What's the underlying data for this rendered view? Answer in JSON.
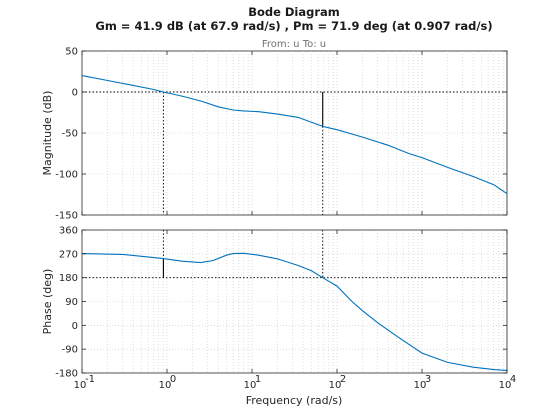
{
  "figure": {
    "title": "Bode Diagram",
    "subtitle": "Gm = 41.9 dB (at 67.9 rad/s) ,  Pm = 71.9 deg (at 0.907 rad/s)",
    "io_label": "From: u  To: u"
  },
  "chart_data": [
    {
      "type": "line",
      "panel": "magnitude",
      "xlabel": "Frequency  (rad/s)",
      "ylabel": "Magnitude (dB)",
      "xscale": "log",
      "xlim": [
        0.1,
        10000
      ],
      "ylim": [
        -150,
        50
      ],
      "yticks": [
        50,
        0,
        -50,
        -100,
        -150
      ],
      "grid": true,
      "reference_line": 0,
      "crossover_frequency": 0.907,
      "gain_margin_frequency": 67.9,
      "gain_margin_marker": [
        -41.9,
        0
      ],
      "series": [
        {
          "x": [
            0.1,
            0.2,
            0.4,
            0.7,
            0.907,
            1.5,
            2.5,
            4,
            6,
            8,
            12,
            20,
            35,
            67.9,
            100,
            200,
            400,
            700,
            1000,
            2000,
            4000,
            7000,
            10000
          ],
          "values": [
            20,
            14,
            8,
            3,
            0,
            -5,
            -11,
            -18,
            -22,
            -23,
            -24,
            -27,
            -31,
            -41.9,
            -46,
            -55,
            -65,
            -75,
            -80,
            -92,
            -103,
            -113,
            -124
          ]
        }
      ]
    },
    {
      "type": "line",
      "panel": "phase",
      "xlabel": "Frequency  (rad/s)",
      "ylabel": "Phase (deg)",
      "xscale": "log",
      "xlim": [
        0.1,
        10000
      ],
      "ylim": [
        -180,
        360
      ],
      "yticks": [
        360,
        270,
        180,
        90,
        0,
        -90,
        -180
      ],
      "grid": true,
      "reference_line": 180,
      "phase_margin_marker": [
        180,
        251.9
      ],
      "series": [
        {
          "x": [
            0.1,
            0.3,
            0.907,
            1.5,
            2.5,
            3.5,
            5,
            6,
            8,
            12,
            20,
            35,
            50,
            67.9,
            100,
            150,
            200,
            300,
            500,
            1000,
            2000,
            4000,
            7000,
            10000
          ],
          "values": [
            271,
            268,
            252,
            242,
            237,
            245,
            265,
            271,
            272,
            265,
            251,
            226,
            206,
            180,
            148,
            90,
            55,
            10,
            -40,
            -105,
            -140,
            -158,
            -167,
            -170
          ]
        }
      ]
    }
  ],
  "xaxis": {
    "tick_values": [
      0.1,
      1,
      10,
      100,
      1000,
      10000
    ],
    "tick_labels": [
      {
        "base": "10",
        "exp": "-1"
      },
      {
        "base": "10",
        "exp": "0"
      },
      {
        "base": "10",
        "exp": "1"
      },
      {
        "base": "10",
        "exp": "2"
      },
      {
        "base": "10",
        "exp": "3"
      },
      {
        "base": "10",
        "exp": "4"
      }
    ]
  },
  "colors": {
    "curve": "#0072bd",
    "reference": "#000000",
    "grid": "#c8c8c8"
  }
}
